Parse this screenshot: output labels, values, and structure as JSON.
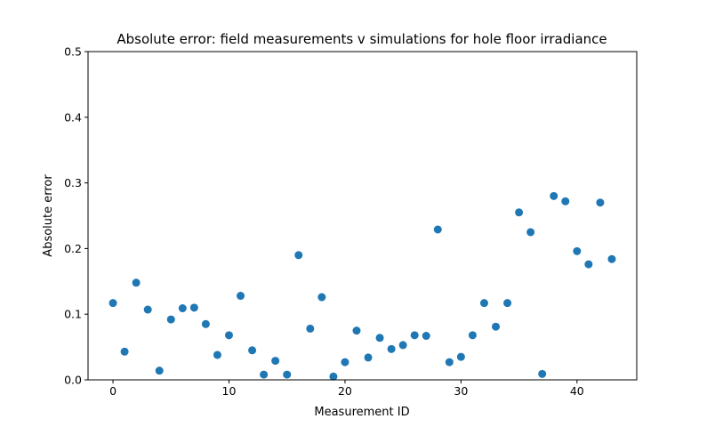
{
  "chart_data": {
    "type": "scatter",
    "title": "Absolute error: field measurements v simulations for hole floor irradiance",
    "xlabel": "Measurement ID",
    "ylabel": "Absolute error",
    "xlim": [
      -2.15,
      45.15
    ],
    "ylim": [
      0,
      0.5
    ],
    "xticks": [
      0,
      10,
      20,
      30,
      40
    ],
    "yticks": [
      0.0,
      0.1,
      0.2,
      0.3,
      0.4,
      0.5
    ],
    "xtick_labels": [
      "0",
      "10",
      "20",
      "30",
      "40"
    ],
    "ytick_labels": [
      "0.0",
      "0.1",
      "0.2",
      "0.3",
      "0.4",
      "0.5"
    ],
    "grid": false,
    "marker_color": "#1f77b4",
    "series": [
      {
        "x": [
          0,
          1,
          2,
          3,
          4,
          5,
          6,
          7,
          8,
          9,
          10,
          11,
          12,
          13,
          14,
          15,
          16,
          17,
          18,
          19,
          20,
          21,
          22,
          23,
          24,
          25,
          26,
          27,
          28,
          29,
          30,
          31,
          32,
          33,
          34,
          35,
          36,
          37,
          38,
          39,
          40,
          41,
          42,
          43
        ],
        "y": [
          0.117,
          0.043,
          0.148,
          0.107,
          0.014,
          0.092,
          0.109,
          0.11,
          0.085,
          0.038,
          0.068,
          0.128,
          0.045,
          0.008,
          0.029,
          0.008,
          0.19,
          0.078,
          0.126,
          0.005,
          0.027,
          0.075,
          0.034,
          0.064,
          0.047,
          0.053,
          0.068,
          0.067,
          0.229,
          0.027,
          0.035,
          0.068,
          0.117,
          0.081,
          0.117,
          0.255,
          0.225,
          0.009,
          0.28,
          0.272,
          0.196,
          0.176,
          0.27,
          0.184
        ]
      }
    ]
  }
}
